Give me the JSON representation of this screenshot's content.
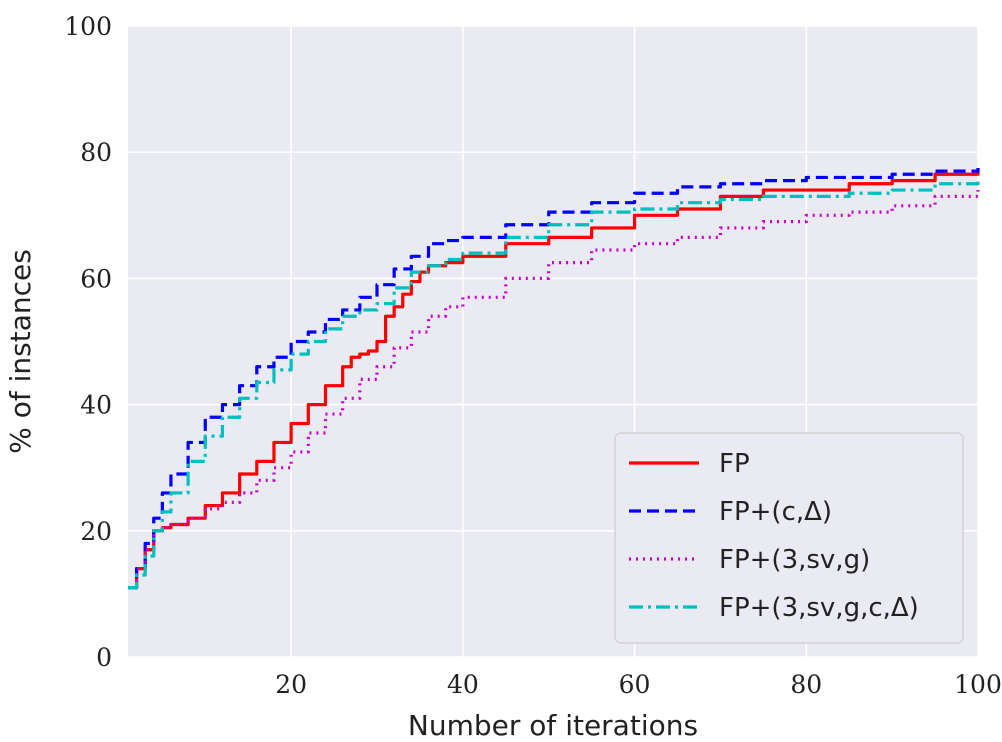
{
  "chart_data": {
    "type": "line",
    "xlabel": "Number of iterations",
    "ylabel": "% of instances",
    "xlim": [
      1,
      100
    ],
    "ylim": [
      0,
      100
    ],
    "x_ticks": [
      20,
      40,
      60,
      80,
      100
    ],
    "y_ticks": [
      0,
      20,
      40,
      60,
      80,
      100
    ],
    "grid": true,
    "legend_position": "lower-right",
    "background": "#eaeaf2",
    "series": [
      {
        "name": "FP",
        "color": "#ff0000",
        "style": "solid",
        "x": [
          1,
          2,
          3,
          4,
          5,
          6,
          8,
          10,
          12,
          14,
          16,
          18,
          20,
          22,
          24,
          26,
          27,
          28,
          29,
          30,
          31,
          32,
          33,
          34,
          35,
          36,
          38,
          40,
          45,
          50,
          55,
          60,
          65,
          70,
          75,
          80,
          85,
          90,
          95,
          100
        ],
        "y": [
          11,
          14,
          17,
          20,
          20.5,
          21,
          22,
          24,
          26,
          29,
          31,
          34,
          37,
          40,
          43,
          46,
          47.5,
          48,
          48.5,
          50,
          54,
          55.5,
          57.5,
          59.5,
          61,
          62,
          62.5,
          63.5,
          65.5,
          66.5,
          68,
          70,
          71,
          73,
          74,
          74,
          75,
          75.5,
          76.5,
          77.5
        ]
      },
      {
        "name": "FP+(c,Δ)",
        "color": "#0000ff",
        "style": "dashed",
        "x": [
          1,
          2,
          3,
          4,
          5,
          6,
          8,
          10,
          12,
          14,
          16,
          18,
          20,
          22,
          24,
          26,
          28,
          30,
          32,
          34,
          36,
          38,
          40,
          45,
          50,
          55,
          60,
          65,
          70,
          75,
          80,
          85,
          90,
          95,
          100
        ],
        "y": [
          11,
          14,
          18,
          22,
          26,
          29,
          34,
          38,
          40,
          43,
          46,
          47.5,
          50,
          51.5,
          53.5,
          55,
          57,
          59,
          61.5,
          63.5,
          65.5,
          66,
          66.5,
          68.5,
          70.5,
          72,
          73.5,
          74.5,
          75,
          75.5,
          76,
          76,
          76.5,
          77,
          77.5
        ]
      },
      {
        "name": "FP+(3,sv,g)",
        "color": "#cc00cc",
        "style": "dotted",
        "x": [
          1,
          2,
          3,
          4,
          5,
          6,
          8,
          10,
          12,
          14,
          16,
          18,
          20,
          22,
          24,
          26,
          28,
          30,
          32,
          34,
          36,
          38,
          40,
          45,
          50,
          55,
          60,
          65,
          70,
          75,
          80,
          85,
          90,
          95,
          100
        ],
        "y": [
          11,
          14,
          17,
          20,
          20.5,
          21,
          22,
          23.5,
          24.5,
          26,
          28,
          30,
          32.5,
          35.5,
          38.5,
          41,
          44,
          46,
          49,
          51.5,
          54,
          55.5,
          57,
          60,
          62.5,
          64.5,
          65.5,
          66.5,
          68,
          69,
          70,
          70.5,
          71.5,
          73,
          74
        ]
      },
      {
        "name": "FP+(3,sv,g,c,Δ)",
        "color": "#00bfbf",
        "style": "dashdot",
        "x": [
          1,
          2,
          3,
          4,
          5,
          6,
          8,
          10,
          12,
          14,
          16,
          18,
          20,
          22,
          24,
          26,
          28,
          30,
          32,
          34,
          36,
          38,
          40,
          45,
          50,
          55,
          60,
          65,
          70,
          75,
          80,
          85,
          90,
          95,
          100
        ],
        "y": [
          11,
          13,
          16,
          20,
          23,
          26,
          31,
          35,
          38,
          41,
          43.5,
          45.5,
          48,
          50,
          52,
          54,
          55,
          56,
          58.5,
          61,
          62,
          63,
          64,
          66.5,
          68.5,
          70.5,
          71,
          72,
          72.5,
          73,
          73,
          73.5,
          74,
          75,
          75.5
        ]
      }
    ]
  }
}
